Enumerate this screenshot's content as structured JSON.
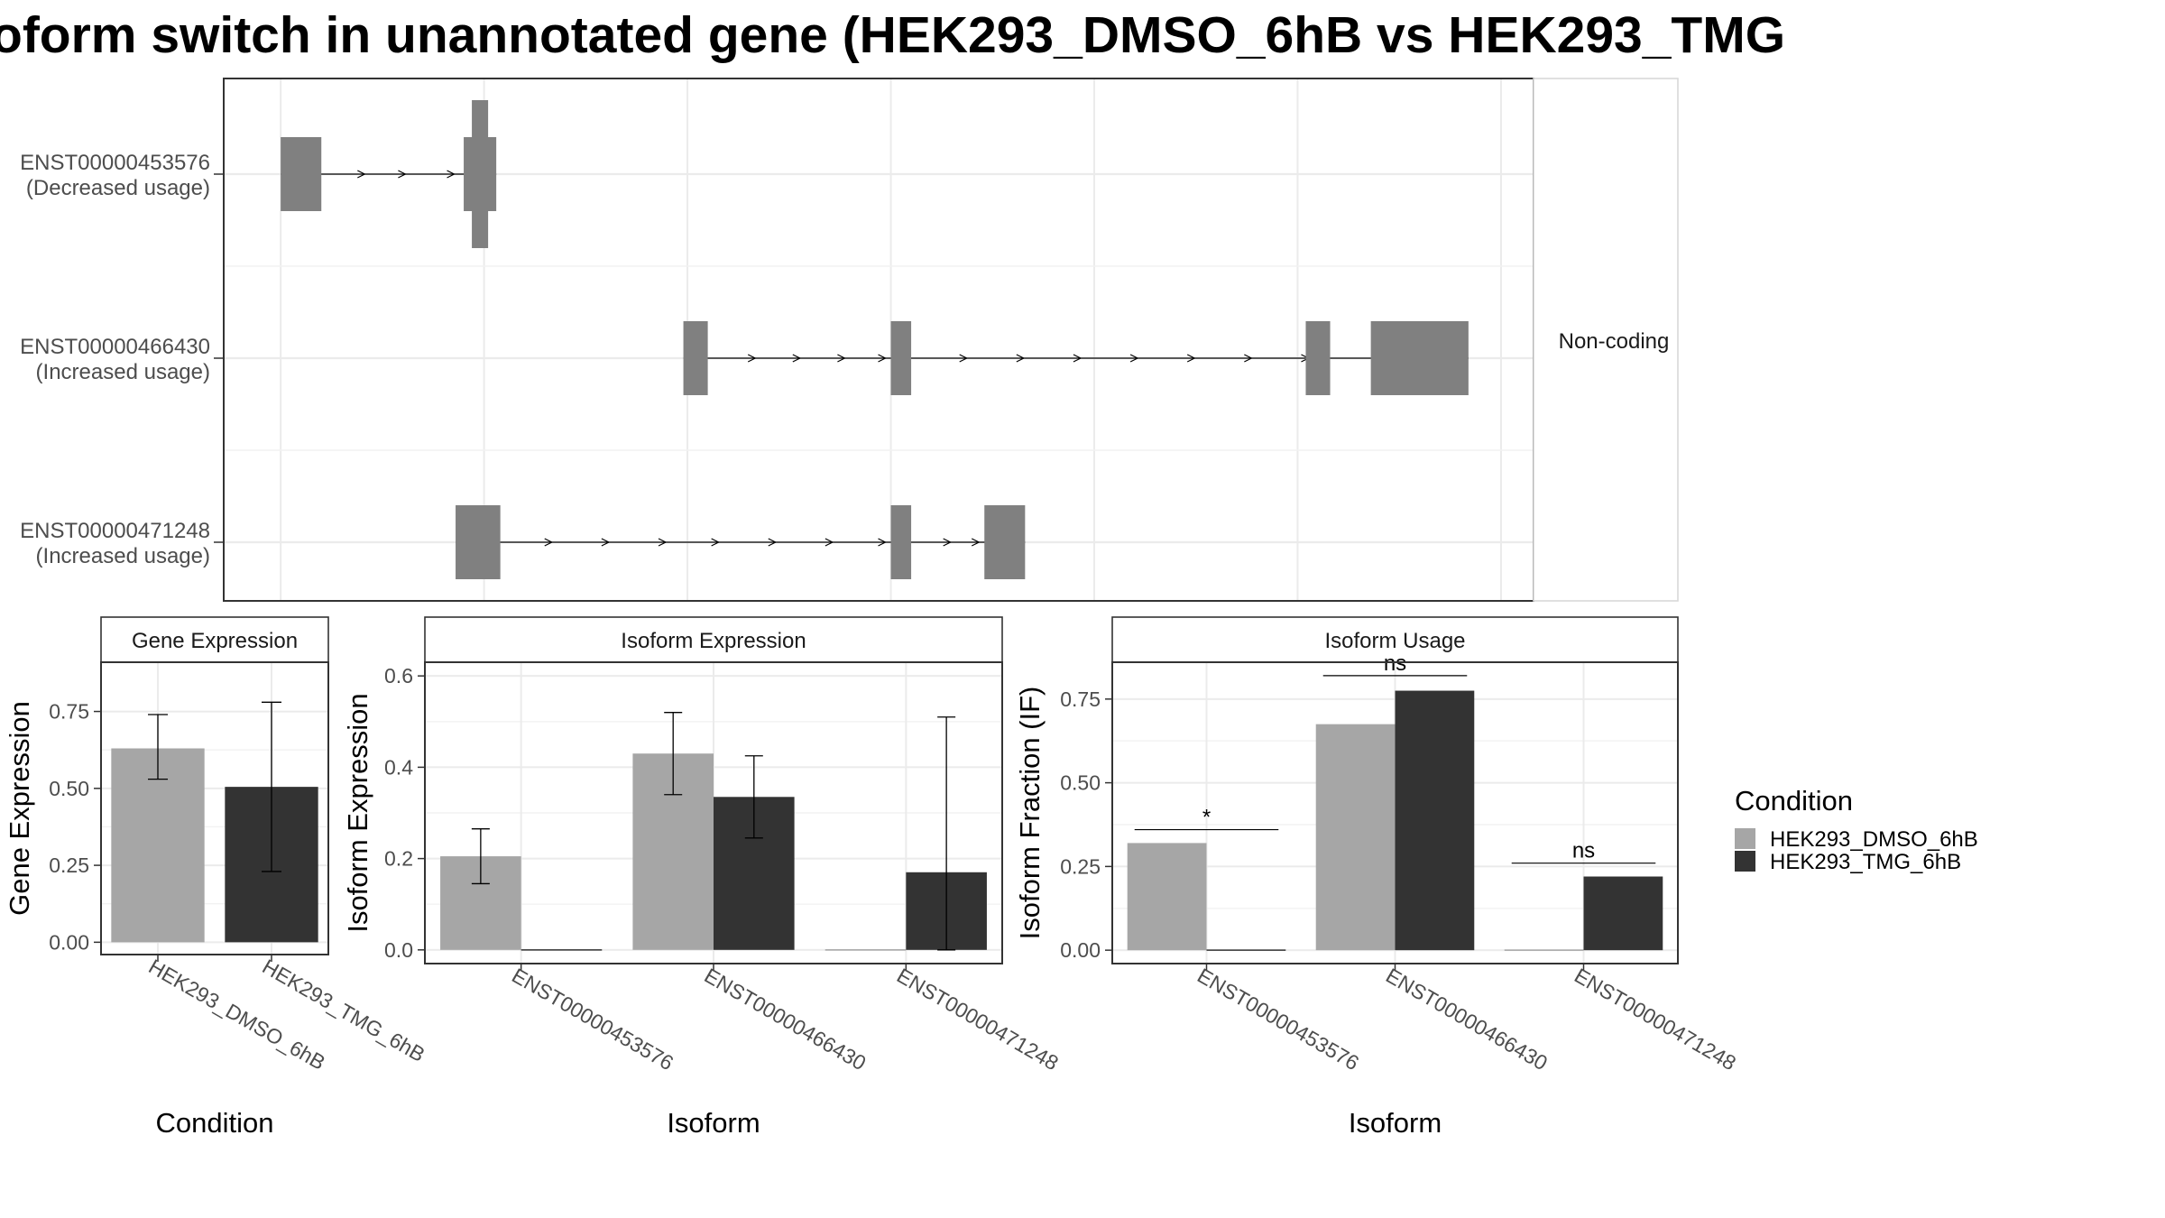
{
  "title": "oform switch in unannotated gene (HEK293_DMSO_6hB vs HEK293_TMG",
  "colors": {
    "dmso": "#a6a6a6",
    "tmg": "#333333",
    "exon": "#808080",
    "grid": "#ebebeb",
    "strip_bg": "#ffffff"
  },
  "chart_data": [
    {
      "type": "gene-structure",
      "facet_label": "Non-coding",
      "isoforms": [
        {
          "id": "ENST00000453576",
          "usage": "(Decreased usage)",
          "exons": [
            [
              0.0,
              1.0
            ],
            [
              4.5,
              5.3
            ]
          ],
          "tall_exons": [
            [
              4.7,
              5.1
            ]
          ],
          "arrows": [
            2.0,
            3.0,
            4.2
          ]
        },
        {
          "id": "ENST00000466430",
          "usage": "(Increased usage)",
          "exons": [
            [
              9.9,
              10.5
            ],
            [
              15.0,
              15.5
            ],
            [
              25.2,
              25.8
            ],
            [
              26.8,
              29.2
            ]
          ],
          "tall_exons": [],
          "arrows": [
            11.6,
            12.7,
            13.8,
            14.8,
            16.8,
            18.2,
            19.6,
            21.0,
            22.4,
            23.8,
            25.2
          ]
        },
        {
          "id": "ENST00000471248",
          "usage": "(Increased usage)",
          "exons": [
            [
              4.3,
              5.4
            ],
            [
              15.0,
              15.5
            ],
            [
              17.3,
              18.3
            ]
          ],
          "tall_exons": [],
          "arrows": [
            6.6,
            8.0,
            9.4,
            10.7,
            12.1,
            13.5,
            14.8,
            16.4,
            17.1
          ]
        }
      ],
      "x_gridlines": [
        0,
        5,
        10,
        15,
        20,
        25,
        30
      ],
      "xlim": [
        -1.4,
        30.8
      ]
    },
    {
      "type": "bar",
      "facet_label": "Gene Expression",
      "categories": [
        "HEK293_DMSO_6hB",
        "HEK293_TMG_6hB"
      ],
      "values": [
        0.63,
        0.505
      ],
      "errors": [
        [
          0.53,
          0.74
        ],
        [
          0.23,
          0.78
        ]
      ],
      "ylabel": "Gene Expression",
      "xlabel": "Condition",
      "ylim": [
        -0.04,
        0.91
      ],
      "yticks": [
        0,
        0.25,
        0.5,
        0.75
      ],
      "ytick_labels": [
        "0.00",
        "0.25",
        "0.50",
        "0.75"
      ]
    },
    {
      "type": "bar",
      "facet_label": "Isoform Expression",
      "categories": [
        "ENST00000453576",
        "ENST00000466430",
        "ENST00000471248"
      ],
      "series": [
        {
          "name": "HEK293_DMSO_6hB",
          "values": [
            0.205,
            0.43,
            0.0
          ],
          "errors": [
            [
              0.145,
              0.265
            ],
            [
              0.34,
              0.52
            ],
            null
          ]
        },
        {
          "name": "HEK293_TMG_6hB",
          "values": [
            0.0,
            0.335,
            0.17
          ],
          "errors": [
            null,
            [
              0.245,
              0.425
            ],
            [
              0.0,
              0.51
            ]
          ]
        }
      ],
      "ylabel": "Isoform Expression",
      "xlabel": "Isoform",
      "ylim": [
        -0.03,
        0.63
      ],
      "yticks": [
        0,
        0.2,
        0.4,
        0.6
      ],
      "ytick_labels": [
        "0.0",
        "0.2",
        "0.4",
        "0.6"
      ]
    },
    {
      "type": "bar",
      "facet_label": "Isoform Usage",
      "categories": [
        "ENST00000453576",
        "ENST00000466430",
        "ENST00000471248"
      ],
      "series": [
        {
          "name": "HEK293_DMSO_6hB",
          "values": [
            0.32,
            0.675,
            0.0
          ]
        },
        {
          "name": "HEK293_TMG_6hB",
          "values": [
            0.0,
            0.775,
            0.22
          ]
        }
      ],
      "significance": [
        {
          "category": 0,
          "label": "*",
          "y": 0.36
        },
        {
          "category": 1,
          "label": "ns",
          "y": 0.82
        },
        {
          "category": 2,
          "label": "ns",
          "y": 0.26
        }
      ],
      "ylabel": "Isoform Fraction (IF)",
      "xlabel": "Isoform",
      "ylim": [
        -0.04,
        0.86
      ],
      "yticks": [
        0,
        0.25,
        0.5,
        0.75
      ],
      "ytick_labels": [
        "0.00",
        "0.25",
        "0.50",
        "0.75"
      ]
    }
  ],
  "legend": {
    "title": "Condition",
    "items": [
      {
        "label": "HEK293_DMSO_6hB",
        "color": "#a6a6a6"
      },
      {
        "label": "HEK293_TMG_6hB",
        "color": "#333333"
      }
    ]
  }
}
